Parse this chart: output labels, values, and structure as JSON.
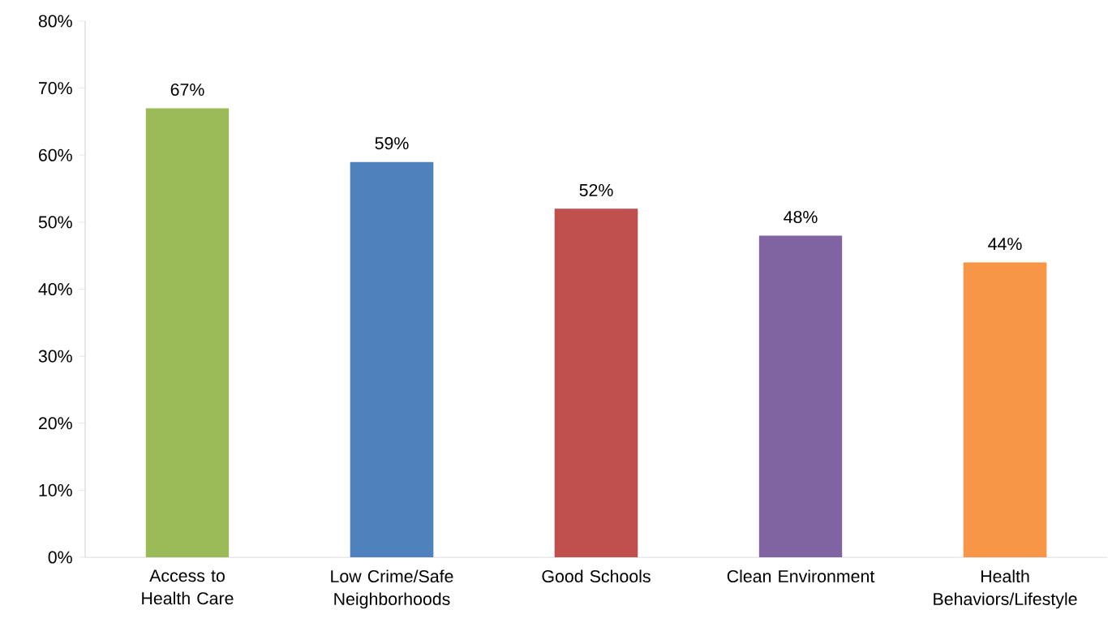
{
  "chart_data": {
    "type": "bar",
    "categories": [
      "Access to Health Care",
      "Low Crime/Safe Neighborhoods",
      "Good Schools",
      "Clean Environment",
      "Health Behaviors/Lifestyle"
    ],
    "values": [
      67,
      59,
      52,
      48,
      44
    ],
    "value_labels": [
      "67%",
      "59%",
      "52%",
      "48%",
      "44%"
    ],
    "colors": [
      "#9bbb59",
      "#4f81bd",
      "#c0504d",
      "#8064a2",
      "#f79646"
    ],
    "ylim": [
      0,
      80
    ],
    "yticks": [
      {
        "value": 0,
        "label": "0%"
      },
      {
        "value": 10,
        "label": "10%"
      },
      {
        "value": 20,
        "label": "20%"
      },
      {
        "value": 30,
        "label": "30%"
      },
      {
        "value": 40,
        "label": "40%"
      },
      {
        "value": 50,
        "label": "50%"
      },
      {
        "value": 60,
        "label": "60%"
      },
      {
        "value": 70,
        "label": "70%"
      },
      {
        "value": 80,
        "label": "80%"
      }
    ]
  }
}
